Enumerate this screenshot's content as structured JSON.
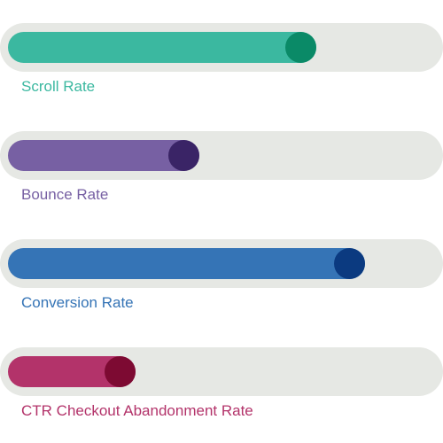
{
  "metrics": [
    {
      "label": "Scroll Rate",
      "value_fraction": 0.79,
      "color": "#3bb8a0",
      "knob_color": "#0a8a67"
    },
    {
      "label": "Bounce Rate",
      "value_fraction": 0.49,
      "color": "#7760a3",
      "knob_color": "#3a2466"
    },
    {
      "label": "Conversion Rate",
      "value_fraction": 0.913,
      "color": "#3574b6",
      "knob_color": "#0b3a80"
    },
    {
      "label": "CTR Checkout Abandonment Rate",
      "value_fraction": 0.326,
      "color": "#b3336a",
      "knob_color": "#7d0a32"
    }
  ]
}
